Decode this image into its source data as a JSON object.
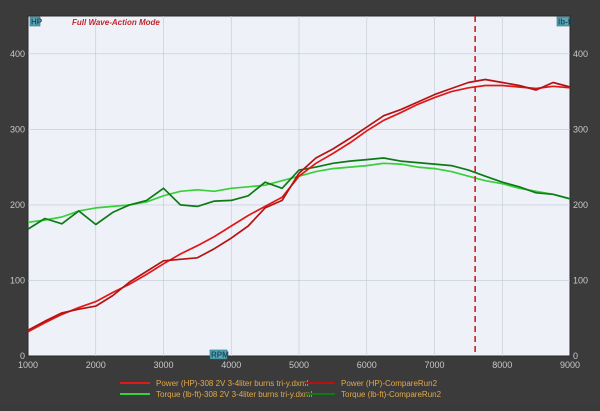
{
  "chart_data": {
    "type": "line",
    "title": "Full Wave-Action Mode",
    "units": {
      "left": "HP",
      "right": "lb-ft",
      "x": "RPM"
    },
    "xlim": [
      1000,
      9000
    ],
    "ylim": [
      0,
      450
    ],
    "x_ticks": [
      "1000",
      "2000",
      "3000",
      "4000",
      "5000",
      "6000",
      "7000",
      "8000",
      "9000"
    ],
    "y_ticks_left": [
      "0",
      "100",
      "200",
      "300",
      "400"
    ],
    "y_ticks_right": [
      "0",
      "100",
      "200",
      "300",
      "400"
    ],
    "grid": true,
    "marker_rpm": 7600,
    "colors": {
      "plot_bg": "#eef1f8",
      "frame_bg": "#3b3b3b",
      "grid": "#c2c8d6",
      "marker": "#d02020",
      "legend_text": "#e2a84a",
      "unit_badge": "#58a8b8"
    },
    "series": [
      {
        "name": "Power (HP)-308 2V 3-4liter burns tri-y.dxml",
        "color": "#e01818",
        "x": [
          1000,
          1250,
          1500,
          1750,
          2000,
          2250,
          2500,
          2750,
          3000,
          3250,
          3500,
          3750,
          4000,
          4250,
          4500,
          4750,
          5000,
          5250,
          5500,
          5750,
          6000,
          6250,
          6500,
          6750,
          7000,
          7250,
          7500,
          7750,
          8000,
          8250,
          8500,
          8750,
          9000
        ],
        "values": [
          32,
          44,
          55,
          64,
          72,
          84,
          95,
          108,
          122,
          135,
          146,
          158,
          172,
          186,
          198,
          210,
          238,
          255,
          268,
          282,
          298,
          312,
          322,
          333,
          342,
          350,
          355,
          358,
          358,
          356,
          354,
          357,
          355
        ]
      },
      {
        "name": "Power (HP)-CompareRun2",
        "color": "#b51212",
        "x": [
          1000,
          1250,
          1500,
          1750,
          2000,
          2250,
          2500,
          2750,
          3000,
          3250,
          3500,
          3750,
          4000,
          4250,
          4500,
          4750,
          5000,
          5250,
          5500,
          5750,
          6000,
          6250,
          6500,
          6750,
          7000,
          7250,
          7500,
          7750,
          8000,
          8250,
          8500,
          8750,
          9000
        ],
        "values": [
          34,
          46,
          57,
          62,
          66,
          80,
          98,
          112,
          126,
          128,
          130,
          142,
          156,
          172,
          196,
          206,
          242,
          262,
          274,
          288,
          303,
          318,
          326,
          336,
          346,
          354,
          362,
          366,
          362,
          358,
          352,
          362,
          356
        ]
      },
      {
        "name": "Torque (lb-ft)-308 2V 3-4liter burns tri-y.dxml",
        "color": "#38d038",
        "x": [
          1000,
          1250,
          1500,
          1750,
          2000,
          2250,
          2500,
          2750,
          3000,
          3250,
          3500,
          3750,
          4000,
          4250,
          4500,
          4750,
          5000,
          5250,
          5500,
          5750,
          6000,
          6250,
          6500,
          6750,
          7000,
          7250,
          7500,
          7750,
          8000,
          8250,
          8500,
          8750,
          9000
        ],
        "values": [
          177,
          180,
          184,
          192,
          196,
          198,
          200,
          204,
          212,
          218,
          220,
          218,
          222,
          224,
          226,
          232,
          238,
          244,
          248,
          250,
          252,
          255,
          254,
          250,
          248,
          244,
          238,
          232,
          228,
          222,
          218,
          214,
          208
        ]
      },
      {
        "name": "Torque (lb-ft)-CompareRun2",
        "color": "#0e7a16",
        "x": [
          1000,
          1250,
          1500,
          1750,
          2000,
          2250,
          2500,
          2750,
          3000,
          3250,
          3500,
          3750,
          4000,
          4250,
          4500,
          4750,
          5000,
          5250,
          5500,
          5750,
          6000,
          6250,
          6500,
          6750,
          7000,
          7250,
          7500,
          7750,
          8000,
          8250,
          8500,
          8750,
          9000
        ],
        "values": [
          168,
          182,
          175,
          192,
          174,
          190,
          200,
          206,
          222,
          200,
          198,
          205,
          206,
          212,
          230,
          222,
          246,
          250,
          255,
          258,
          260,
          262,
          258,
          256,
          254,
          252,
          246,
          238,
          230,
          224,
          216,
          214,
          208
        ]
      }
    ]
  }
}
